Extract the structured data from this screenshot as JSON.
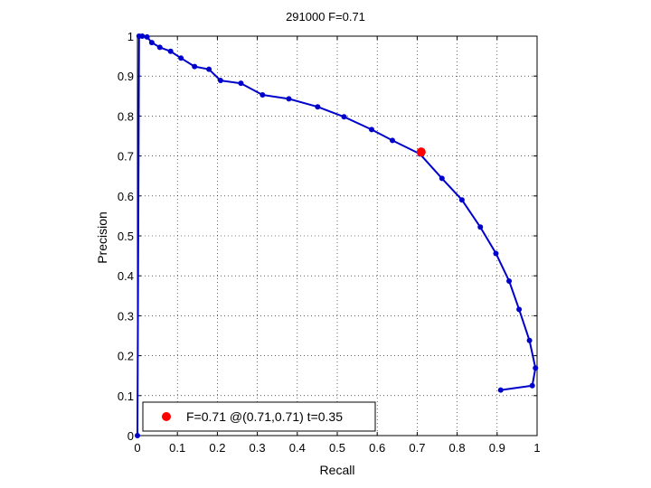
{
  "chart_data": {
    "type": "line",
    "title": "291000 F=0.71",
    "xlabel": "Recall",
    "ylabel": "Precision",
    "xlim": [
      0,
      1
    ],
    "ylim": [
      0,
      1
    ],
    "xticks": [
      0,
      0.1,
      0.2,
      0.3,
      0.4,
      0.5,
      0.6,
      0.7,
      0.8,
      0.9,
      1
    ],
    "yticks": [
      0,
      0.1,
      0.2,
      0.3,
      0.4,
      0.5,
      0.6,
      0.7,
      0.8,
      0.9,
      1
    ],
    "xtick_labels": [
      "0",
      "0.1",
      "0.2",
      "0.3",
      "0.4",
      "0.5",
      "0.6",
      "0.7",
      "0.8",
      "0.9",
      "1"
    ],
    "ytick_labels": [
      "0",
      "0.1",
      "0.2",
      "0.3",
      "0.4",
      "0.5",
      "0.6",
      "0.7",
      "0.8",
      "0.9",
      "1"
    ],
    "grid": true,
    "legend_position": "bottom-left",
    "series": [
      {
        "color": "#0000cc",
        "marker": "dot",
        "x": [
          0.909,
          0.988,
          0.996,
          0.981,
          0.955,
          0.93,
          0.897,
          0.858,
          0.812,
          0.762,
          0.707,
          0.638,
          0.586,
          0.517,
          0.451,
          0.379,
          0.313,
          0.259,
          0.208,
          0.179,
          0.143,
          0.109,
          0.083,
          0.056,
          0.036,
          0.024,
          0.012,
          0.004,
          0.0
        ],
        "y": [
          0.114,
          0.125,
          0.169,
          0.238,
          0.316,
          0.387,
          0.456,
          0.522,
          0.59,
          0.644,
          0.705,
          0.739,
          0.766,
          0.798,
          0.823,
          0.843,
          0.853,
          0.882,
          0.889,
          0.917,
          0.924,
          0.945,
          0.962,
          0.972,
          0.984,
          0.998,
          1.0,
          1.0,
          0.0
        ]
      }
    ],
    "highlight": {
      "label": "F=0.71 @(0.71,0.71) t=0.35",
      "x": 0.71,
      "y": 0.71,
      "color": "#ff0000"
    }
  }
}
